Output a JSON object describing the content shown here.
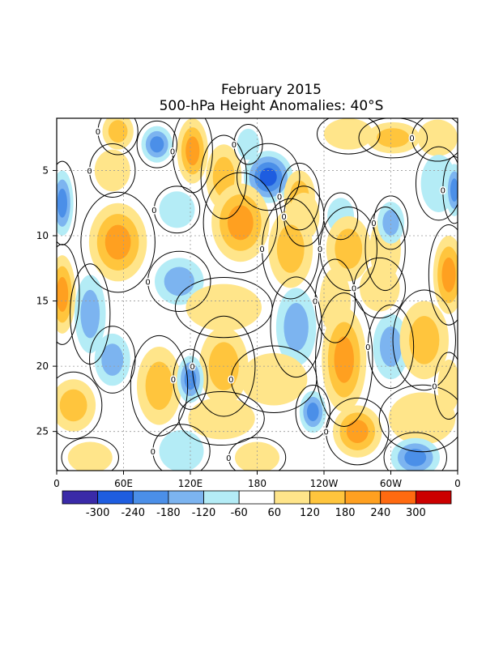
{
  "chart_data": {
    "type": "heatmap",
    "title": "February 2015",
    "subtitle": "500-hPa Height Anomalies: 40°S",
    "xlabel": "",
    "ylabel": "",
    "x_ticks": [
      "0",
      "60E",
      "120E",
      "180",
      "120W",
      "60W",
      "0"
    ],
    "y_ticks": [
      "5",
      "10",
      "15",
      "20",
      "25"
    ],
    "xlim": [
      0,
      360
    ],
    "ylim": [
      1,
      28
    ],
    "grid": true,
    "contour_label": "0",
    "colorbar": {
      "labels": [
        "-300",
        "-240",
        "-180",
        "-120",
        "-60",
        "60",
        "120",
        "180",
        "240",
        "300"
      ],
      "colors": [
        "#3a2aa8",
        "#1e5de0",
        "#4b8fe8",
        "#7cb4f0",
        "#b4ecf6",
        "#ffffff",
        "#ffe58a",
        "#ffc53d",
        "#ffa020",
        "#ff6a10",
        "#cc0000"
      ]
    },
    "anomalies": [
      {
        "x": 55,
        "y": 2,
        "rx": 14,
        "ry": 1.4,
        "v": 120
      },
      {
        "x": 90,
        "y": 3,
        "rx": 14,
        "ry": 1.4,
        "v": -180
      },
      {
        "x": 122,
        "y": 3.5,
        "rx": 14,
        "ry": 2.5,
        "v": 180
      },
      {
        "x": 150,
        "y": 5.5,
        "rx": 16,
        "ry": 2.5,
        "v": 120
      },
      {
        "x": 172,
        "y": 3,
        "rx": 10,
        "ry": 1.2,
        "v": -60
      },
      {
        "x": 190,
        "y": 5.5,
        "rx": 22,
        "ry": 2,
        "v": -240
      },
      {
        "x": 218,
        "y": 7,
        "rx": 14,
        "ry": 2,
        "v": 120
      },
      {
        "x": 262,
        "y": 2.2,
        "rx": 22,
        "ry": 1.2,
        "v": 60
      },
      {
        "x": 222,
        "y": 8.5,
        "rx": 14,
        "ry": 1.8,
        "v": 60
      },
      {
        "x": 302,
        "y": 2.5,
        "rx": 24,
        "ry": 1.2,
        "v": 120
      },
      {
        "x": 342,
        "y": 2.5,
        "rx": 18,
        "ry": 1.4,
        "v": 60
      },
      {
        "x": 5,
        "y": 7.5,
        "rx": 10,
        "ry": 2.5,
        "v": -180
      },
      {
        "x": 50,
        "y": 5,
        "rx": 16,
        "ry": 1.6,
        "v": 60
      },
      {
        "x": 55,
        "y": 10.5,
        "rx": 26,
        "ry": 3,
        "v": 180
      },
      {
        "x": 108,
        "y": 8,
        "rx": 16,
        "ry": 1.4,
        "v": -60
      },
      {
        "x": 165,
        "y": 9,
        "rx": 26,
        "ry": 3,
        "v": 180
      },
      {
        "x": 210,
        "y": 11,
        "rx": 20,
        "ry": 3,
        "v": 120
      },
      {
        "x": 255,
        "y": 8.5,
        "rx": 12,
        "ry": 1.4,
        "v": -60
      },
      {
        "x": 262,
        "y": 11,
        "rx": 20,
        "ry": 2.5,
        "v": 120
      },
      {
        "x": 295,
        "y": 11,
        "rx": 14,
        "ry": 2.5,
        "v": 60
      },
      {
        "x": 300,
        "y": 9,
        "rx": 12,
        "ry": 1.6,
        "v": -120
      },
      {
        "x": 343,
        "y": 6,
        "rx": 16,
        "ry": 2.2,
        "v": -60
      },
      {
        "x": 357,
        "y": 6.5,
        "rx": 8,
        "ry": 2,
        "v": -180
      },
      {
        "x": 352,
        "y": 13,
        "rx": 14,
        "ry": 3,
        "v": 180
      },
      {
        "x": 5,
        "y": 14.5,
        "rx": 12,
        "ry": 3,
        "v": 180
      },
      {
        "x": 30,
        "y": 16,
        "rx": 14,
        "ry": 3,
        "v": -120
      },
      {
        "x": 110,
        "y": 13.5,
        "rx": 22,
        "ry": 1.8,
        "v": -120
      },
      {
        "x": 150,
        "y": 15.5,
        "rx": 34,
        "ry": 1.8,
        "v": 60
      },
      {
        "x": 150,
        "y": 20,
        "rx": 22,
        "ry": 3,
        "v": 120
      },
      {
        "x": 215,
        "y": 17,
        "rx": 18,
        "ry": 3,
        "v": -120
      },
      {
        "x": 250,
        "y": 15,
        "rx": 14,
        "ry": 2.5,
        "v": 60
      },
      {
        "x": 258,
        "y": 19.5,
        "rx": 20,
        "ry": 4,
        "v": 180
      },
      {
        "x": 300,
        "y": 18.5,
        "rx": 16,
        "ry": 2.5,
        "v": -120
      },
      {
        "x": 330,
        "y": 18,
        "rx": 22,
        "ry": 3,
        "v": 120
      },
      {
        "x": 290,
        "y": 14,
        "rx": 18,
        "ry": 1.8,
        "v": 60
      },
      {
        "x": 50,
        "y": 19.5,
        "rx": 16,
        "ry": 2,
        "v": -120
      },
      {
        "x": 15,
        "y": 23,
        "rx": 20,
        "ry": 2,
        "v": 120
      },
      {
        "x": 92,
        "y": 21.5,
        "rx": 20,
        "ry": 3,
        "v": 120
      },
      {
        "x": 120,
        "y": 21,
        "rx": 12,
        "ry": 1.8,
        "v": -180
      },
      {
        "x": 148,
        "y": 24,
        "rx": 30,
        "ry": 1.6,
        "v": 60
      },
      {
        "x": 195,
        "y": 21,
        "rx": 30,
        "ry": 2,
        "v": 60
      },
      {
        "x": 230,
        "y": 23.5,
        "rx": 12,
        "ry": 1.6,
        "v": -180
      },
      {
        "x": 270,
        "y": 25,
        "rx": 22,
        "ry": 2,
        "v": 180
      },
      {
        "x": 328,
        "y": 24,
        "rx": 30,
        "ry": 2,
        "v": 60
      },
      {
        "x": 112,
        "y": 26.5,
        "rx": 20,
        "ry": 1.6,
        "v": -60
      },
      {
        "x": 30,
        "y": 27,
        "rx": 20,
        "ry": 1.2,
        "v": 60
      },
      {
        "x": 180,
        "y": 27,
        "rx": 20,
        "ry": 1.2,
        "v": 60
      },
      {
        "x": 322,
        "y": 27,
        "rx": 22,
        "ry": 1.5,
        "v": -180
      },
      {
        "x": 352,
        "y": 21.5,
        "rx": 10,
        "ry": 2,
        "v": 60
      }
    ]
  }
}
